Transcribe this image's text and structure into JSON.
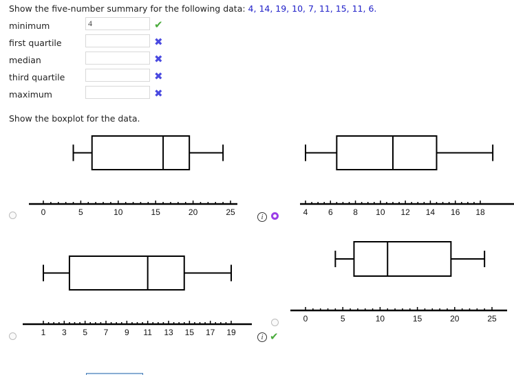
{
  "question": {
    "prefix": "Show the five-number summary for the following data:",
    "data": "4, 14, 19, 10, 7, 11, 15, 11, 6."
  },
  "fields": [
    {
      "label": "minimum",
      "value": "4",
      "status": "correct"
    },
    {
      "label": "first quartile",
      "value": "",
      "status": "incorrect"
    },
    {
      "label": "median",
      "value": "",
      "status": "incorrect"
    },
    {
      "label": "third quartile",
      "value": "",
      "status": "incorrect"
    },
    {
      "label": "maximum",
      "value": "",
      "status": "incorrect"
    }
  ],
  "icons": {
    "correct": "✔",
    "incorrect": "✖",
    "info": "i"
  },
  "prompt2": "Show the boxplot for the data.",
  "colors": {
    "selected_radio": "#9b3ee8",
    "correct": "#4aab3c",
    "incorrect": "#4a4ae0",
    "data_text": "#2020c8"
  },
  "chart_data": [
    {
      "type": "boxplot",
      "min": 4,
      "q1": 6.5,
      "median": 16,
      "q3": 19.5,
      "max": 24,
      "xlim": [
        0,
        25
      ],
      "ticks": [
        0,
        5,
        10,
        15,
        20,
        25
      ],
      "minor_step": 1,
      "selected": false,
      "info": false,
      "result": ""
    },
    {
      "type": "boxplot",
      "min": 4,
      "q1": 6.5,
      "median": 11,
      "q3": 14.5,
      "max": 19,
      "xlim": [
        4,
        18
      ],
      "ticks": [
        4,
        6,
        8,
        10,
        12,
        14,
        16,
        18
      ],
      "minor_step": 0.5,
      "selected": true,
      "info": true,
      "result": ""
    },
    {
      "type": "boxplot",
      "min": 1,
      "q1": 3.5,
      "median": 11,
      "q3": 14.5,
      "max": 19,
      "xlim": [
        1,
        19
      ],
      "ticks": [
        1,
        3,
        5,
        7,
        9,
        11,
        13,
        15,
        17,
        19
      ],
      "minor_step": 0.5,
      "selected": false,
      "info": false,
      "result": ""
    },
    {
      "type": "boxplot",
      "min": 4,
      "q1": 6.5,
      "median": 11,
      "q3": 19.5,
      "max": 24,
      "xlim": [
        0,
        25
      ],
      "ticks": [
        0,
        5,
        10,
        15,
        20,
        25
      ],
      "minor_step": 1,
      "selected": false,
      "info": true,
      "result": "correct"
    }
  ]
}
